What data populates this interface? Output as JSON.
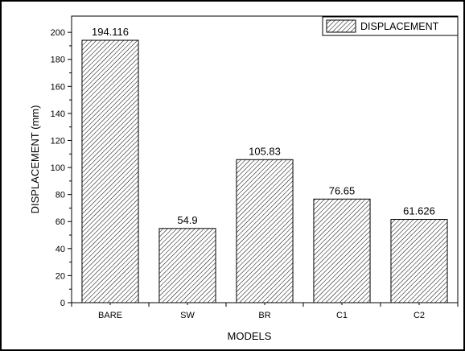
{
  "chart_data": {
    "type": "bar",
    "categories": [
      "BARE",
      "SW",
      "BR",
      "C1",
      "C2"
    ],
    "series": [
      {
        "name": "DISPLACEMENT",
        "values": [
          194.116,
          54.9,
          105.83,
          76.65,
          61.626
        ]
      }
    ],
    "data_labels": [
      "194.116",
      "54.9",
      "105.83",
      "76.65",
      "61.626"
    ],
    "xlabel": "MODELS",
    "ylabel": "DISPLACEMENT (mm)",
    "ylim": [
      0,
      212
    ],
    "yticks": [
      0,
      20,
      40,
      60,
      80,
      100,
      120,
      140,
      160,
      180,
      200
    ],
    "ytick_labels": [
      "0",
      "20",
      "40",
      "60",
      "80",
      "100",
      "120",
      "140",
      "160",
      "180",
      "200"
    ],
    "grid": false,
    "legend_position": "top-right",
    "legend_label": "DISPLACEMENT",
    "bar_fill": "hatched",
    "colors": {
      "bar_stroke": "#000000",
      "hatch": "#000000",
      "background": "#ffffff"
    }
  }
}
